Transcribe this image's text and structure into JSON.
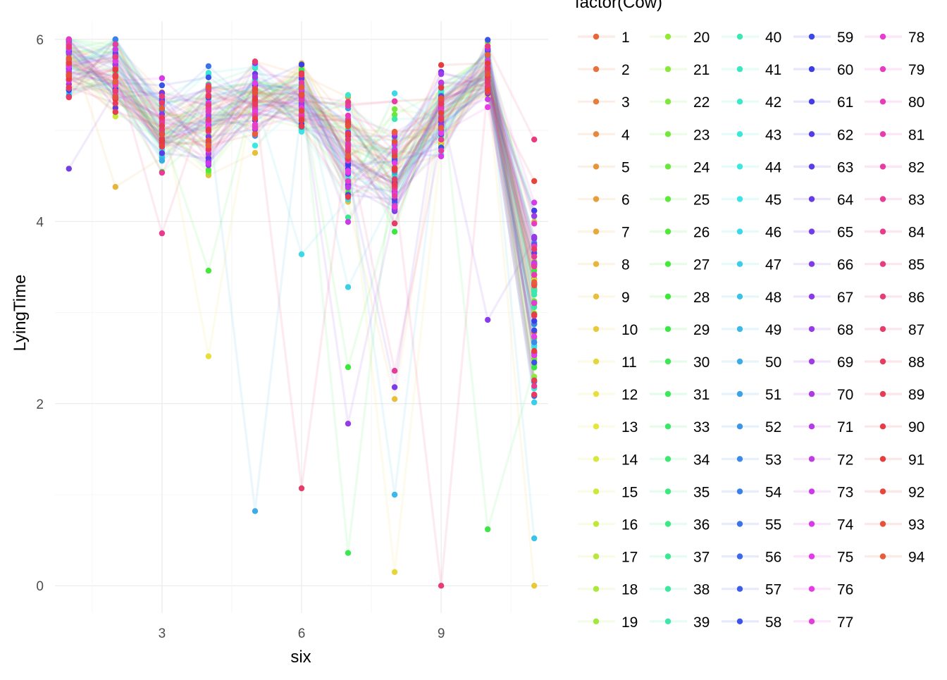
{
  "chart_data": {
    "type": "line",
    "title": "",
    "xlabel": "six",
    "ylabel": "LyingTime",
    "xlim": [
      0.7,
      11.3
    ],
    "ylim": [
      -0.3,
      6.2
    ],
    "x_ticks": [
      3,
      6,
      9
    ],
    "x_tick_labels": [
      "3",
      "6",
      "9"
    ],
    "y_ticks": [
      0,
      2,
      4,
      6
    ],
    "y_tick_labels": [
      "0",
      "2",
      "4",
      "6"
    ],
    "x": [
      1,
      2,
      3,
      4,
      5,
      6,
      7,
      8,
      9,
      10,
      11
    ],
    "legend_title": "factor(Cow)",
    "legend_placement": "right",
    "grid": true,
    "series": [
      {
        "name": "1"
      },
      {
        "name": "2"
      },
      {
        "name": "3"
      },
      {
        "name": "4"
      },
      {
        "name": "5"
      },
      {
        "name": "6"
      },
      {
        "name": "7"
      },
      {
        "name": "8"
      },
      {
        "name": "9"
      },
      {
        "name": "10"
      },
      {
        "name": "11"
      },
      {
        "name": "12"
      },
      {
        "name": "13"
      },
      {
        "name": "14"
      },
      {
        "name": "15"
      },
      {
        "name": "16"
      },
      {
        "name": "17"
      },
      {
        "name": "18"
      },
      {
        "name": "19"
      },
      {
        "name": "20"
      },
      {
        "name": "21"
      },
      {
        "name": "22"
      },
      {
        "name": "23"
      },
      {
        "name": "24"
      },
      {
        "name": "25"
      },
      {
        "name": "26"
      },
      {
        "name": "27"
      },
      {
        "name": "28"
      },
      {
        "name": "29"
      },
      {
        "name": "30"
      },
      {
        "name": "31"
      },
      {
        "name": "33"
      },
      {
        "name": "34"
      },
      {
        "name": "35"
      },
      {
        "name": "36"
      },
      {
        "name": "37"
      },
      {
        "name": "38"
      },
      {
        "name": "39"
      },
      {
        "name": "40"
      },
      {
        "name": "41"
      },
      {
        "name": "42"
      },
      {
        "name": "43"
      },
      {
        "name": "44"
      },
      {
        "name": "45"
      },
      {
        "name": "46"
      },
      {
        "name": "47"
      },
      {
        "name": "48"
      },
      {
        "name": "49"
      },
      {
        "name": "50"
      },
      {
        "name": "51"
      },
      {
        "name": "52"
      },
      {
        "name": "53"
      },
      {
        "name": "54"
      },
      {
        "name": "55"
      },
      {
        "name": "56"
      },
      {
        "name": "57"
      },
      {
        "name": "58"
      },
      {
        "name": "59"
      },
      {
        "name": "60"
      },
      {
        "name": "61"
      },
      {
        "name": "62"
      },
      {
        "name": "63"
      },
      {
        "name": "64"
      },
      {
        "name": "65"
      },
      {
        "name": "66"
      },
      {
        "name": "67"
      },
      {
        "name": "68"
      },
      {
        "name": "69"
      },
      {
        "name": "70"
      },
      {
        "name": "71"
      },
      {
        "name": "72"
      },
      {
        "name": "73"
      },
      {
        "name": "74"
      },
      {
        "name": "75"
      },
      {
        "name": "76"
      },
      {
        "name": "77"
      },
      {
        "name": "78"
      },
      {
        "name": "79"
      },
      {
        "name": "80"
      },
      {
        "name": "81"
      },
      {
        "name": "82"
      },
      {
        "name": "83"
      },
      {
        "name": "84"
      },
      {
        "name": "85"
      },
      {
        "name": "86"
      },
      {
        "name": "87"
      },
      {
        "name": "88"
      },
      {
        "name": "89"
      },
      {
        "name": "90"
      },
      {
        "name": "91"
      },
      {
        "name": "92"
      },
      {
        "name": "93"
      },
      {
        "name": "94"
      }
    ],
    "highlighted_points": [
      {
        "x": 4,
        "y": 2.52
      },
      {
        "x": 5,
        "y": 0.82
      },
      {
        "x": 6,
        "y": 1.07
      },
      {
        "x": 7,
        "y": 0.36
      },
      {
        "x": 7,
        "y": 1.78
      },
      {
        "x": 8,
        "y": 0.15
      },
      {
        "x": 8,
        "y": 1.0
      },
      {
        "x": 9,
        "y": 0.0
      },
      {
        "x": 10,
        "y": 0.62
      },
      {
        "x": 10,
        "y": 2.92
      },
      {
        "x": 11,
        "y": 0.0
      },
      {
        "x": 11,
        "y": 0.52
      },
      {
        "x": 11,
        "y": 4.9
      },
      {
        "x": 7,
        "y": 2.4
      },
      {
        "x": 8,
        "y": 2.18
      },
      {
        "x": 8,
        "y": 2.05
      },
      {
        "x": 7,
        "y": 3.28
      },
      {
        "x": 3,
        "y": 3.87
      },
      {
        "x": 4,
        "y": 3.46
      },
      {
        "x": 1,
        "y": 4.58
      },
      {
        "x": 2,
        "y": 4.38
      },
      {
        "x": 6,
        "y": 3.64
      },
      {
        "x": 8,
        "y": 2.36
      }
    ]
  }
}
